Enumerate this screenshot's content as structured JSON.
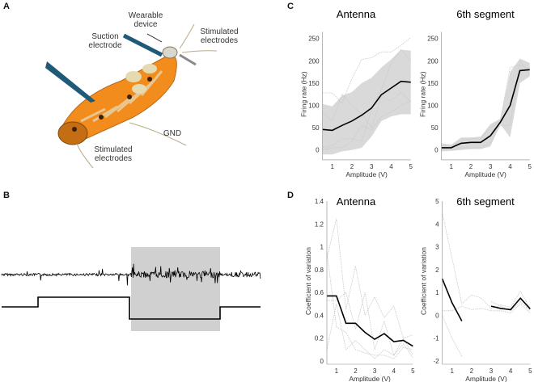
{
  "panels": {
    "a": "A",
    "b": "B",
    "c": "C",
    "d": "D"
  },
  "illustration": {
    "wearable_device": "Wearable device",
    "suction_electrode": "Suction electrode",
    "stim_top": "Stimulated electrodes",
    "stim_bottom": "Stimulated electrodes",
    "gnd": "GND"
  },
  "colors": {
    "mean": "#000000",
    "band": "#d9d9d9",
    "trace": "#c8c8c8",
    "electrode": "#1f5a78",
    "body": "#f28c1c"
  },
  "chart_data": [
    {
      "id": "c-antenna",
      "type": "line",
      "title": "Antenna",
      "xlabel": "Amplitude (V)",
      "ylabel": "Firing rate (Hz)",
      "xlim": [
        0.5,
        5
      ],
      "ylim": [
        -15,
        265
      ],
      "xticks": [
        1,
        2,
        3,
        4,
        5
      ],
      "yticks": [
        0,
        50,
        100,
        150,
        200,
        250
      ],
      "x": [
        0.5,
        1,
        1.5,
        2,
        2.5,
        3,
        3.5,
        4,
        4.5,
        5
      ],
      "mean": [
        46,
        44,
        55,
        65,
        78,
        94,
        124,
        139,
        154,
        152
      ],
      "band_upper": [
        103,
        98,
        122,
        130,
        150,
        162,
        185,
        203,
        225,
        223
      ],
      "band_lower": [
        -10,
        -10,
        -3,
        0,
        5,
        30,
        65,
        75,
        80,
        80
      ],
      "traces": [
        [
          128,
          128,
          105,
          160,
          203,
          207,
          220,
          220,
          235,
          252
        ],
        [
          83,
          66,
          125,
          100,
          80,
          50,
          120,
          110,
          130,
          108
        ],
        [
          5,
          10,
          25,
          25,
          20,
          90,
          135,
          195,
          225,
          200
        ],
        [
          0,
          5,
          5,
          20,
          55,
          45,
          75,
          85,
          100,
          110
        ]
      ]
    },
    {
      "id": "c-6th",
      "type": "line",
      "title": "6th segment",
      "xlabel": "Amplitude (V)",
      "ylabel": "Firing rate (Hz)",
      "xlim": [
        0.5,
        5
      ],
      "ylim": [
        -15,
        265
      ],
      "xticks": [
        1,
        2,
        3,
        4,
        5
      ],
      "yticks": [
        0,
        50,
        100,
        150,
        200,
        250
      ],
      "x": [
        0.5,
        1,
        1.5,
        2,
        2.5,
        3,
        3.5,
        4,
        4.5,
        5
      ],
      "mean": [
        5,
        5,
        15,
        17,
        17,
        32,
        62,
        100,
        178,
        180
      ],
      "band_upper": [
        15,
        12,
        28,
        28,
        30,
        58,
        70,
        175,
        205,
        195
      ],
      "band_lower": [
        -3,
        -2,
        0,
        2,
        2,
        8,
        58,
        28,
        150,
        165
      ],
      "traces": [
        [
          10,
          8,
          20,
          25,
          25,
          50,
          65,
          185,
          190,
          180
        ],
        [
          0,
          0,
          5,
          5,
          5,
          15,
          55,
          55,
          200,
          170
        ]
      ]
    },
    {
      "id": "d-antenna",
      "type": "line",
      "title": "Antenna",
      "xlabel": "Amplitude (V)",
      "ylabel": "Coefficient of variation",
      "xlim": [
        0.5,
        5
      ],
      "ylim": [
        0,
        1.4
      ],
      "xticks": [
        1,
        2,
        3,
        4,
        5
      ],
      "yticks": [
        0,
        0.2,
        0.4,
        0.6,
        0.8,
        1,
        1.2,
        1.4
      ],
      "x": [
        0.5,
        1,
        1.5,
        2,
        2.5,
        3,
        3.5,
        4,
        4.5,
        5
      ],
      "mean": [
        0.57,
        0.57,
        0.33,
        0.33,
        0.25,
        0.19,
        0.24,
        0.17,
        0.18,
        0.13
      ],
      "traces": [
        [
          0.9,
          1.25,
          0.45,
          0.83,
          0.4,
          0.56,
          0.38,
          0.48,
          0.2,
          0.23
        ],
        [
          0.53,
          0.53,
          0.6,
          0.28,
          0.6,
          0.1,
          0.35,
          0.05,
          0.2,
          0.05
        ],
        [
          0.1,
          0.5,
          0.1,
          0.18,
          0.1,
          0.02,
          0.1,
          0.05,
          0.15,
          0.03
        ],
        [
          0.95,
          0.3,
          0.25,
          0.1,
          0.07,
          0.05,
          0.05,
          0.02,
          0.12,
          0.1
        ]
      ]
    },
    {
      "id": "d-6th",
      "type": "line",
      "title": "6th segment",
      "xlabel": "Amplitude (V)",
      "ylabel": "Coefficient of variation",
      "xlim": [
        0.5,
        5
      ],
      "ylim": [
        -2,
        5
      ],
      "xticks": [
        1,
        2,
        3,
        4,
        5
      ],
      "yticks": [
        -2,
        -1,
        0,
        1,
        2,
        3,
        4,
        5
      ],
      "x": [
        0.5,
        1,
        1.5,
        2,
        2.5,
        3,
        3.5,
        4,
        4.5,
        5
      ],
      "mean": [
        1.6,
        0.55,
        -0.25,
        null,
        null,
        0.4,
        0.3,
        0.25,
        0.75,
        0.28
      ],
      "traces": [
        [
          4.5,
          2.5,
          0.5,
          0.9,
          0.75,
          0.3,
          0.45,
          0.35,
          1.05,
          0.3
        ],
        [
          0.2,
          0.2,
          0.4,
          0.25,
          0.3,
          0.2,
          0.2,
          0.1,
          0.5,
          0.1
        ],
        [
          0,
          -1,
          -1.8,
          null,
          null,
          0.6,
          0.4,
          0.2,
          0.6,
          0.2
        ]
      ]
    }
  ]
}
